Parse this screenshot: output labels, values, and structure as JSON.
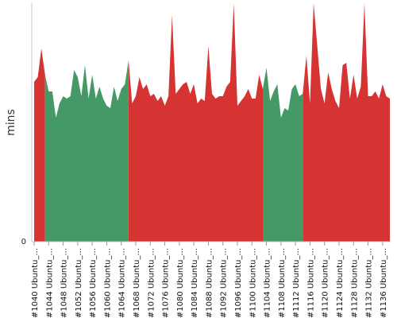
{
  "chart_data": {
    "type": "area",
    "ylabel": "mins",
    "yticks": [
      "0"
    ],
    "ylim": [
      0,
      100
    ],
    "colors": {
      "success": "#449966",
      "failure": "#d63333"
    },
    "x_labels": [
      "#1040 Ubuntu_...",
      "#1044 Ubuntu_...",
      "#1048 Ubuntu_...",
      "#1052 Ubuntu_...",
      "#1056 Ubuntu_...",
      "#1060 Ubuntu_...",
      "#1064 Ubuntu_...",
      "#1068 Ubuntu_...",
      "#1072 Ubuntu_...",
      "#1076 Ubuntu_...",
      "#1080 Ubuntu_...",
      "#1084 Ubuntu_...",
      "#1088 Ubuntu_...",
      "#1092 Ubuntu_...",
      "#1096 Ubuntu_...",
      "#1100 Ubuntu_...",
      "#1104 Ubuntu_...",
      "#1108 Ubuntu_...",
      "#1112 Ubuntu_...",
      "#1116 Ubuntu_...",
      "#1120 Ubuntu_...",
      "#1124 Ubuntu_...",
      "#1128 Ubuntu_...",
      "#1132 Ubuntu_...",
      "#1136 Ubuntu_..."
    ],
    "x_start": 1040,
    "x_end": 1138,
    "segments": [
      {
        "status": "failure",
        "from": 1040,
        "to": 1043
      },
      {
        "status": "success",
        "from": 1043,
        "to": 1066
      },
      {
        "status": "failure",
        "from": 1066,
        "to": 1103
      },
      {
        "status": "success",
        "from": 1103,
        "to": 1114
      },
      {
        "status": "failure",
        "from": 1114,
        "to": 1138
      }
    ],
    "points": [
      [
        1040,
        67
      ],
      [
        1041,
        69
      ],
      [
        1042,
        81
      ],
      [
        1043,
        70
      ],
      [
        1044,
        63
      ],
      [
        1045,
        63
      ],
      [
        1046,
        52
      ],
      [
        1047,
        58
      ],
      [
        1048,
        61
      ],
      [
        1049,
        60
      ],
      [
        1050,
        61
      ],
      [
        1051,
        72
      ],
      [
        1052,
        69
      ],
      [
        1053,
        61
      ],
      [
        1054,
        74
      ],
      [
        1055,
        60
      ],
      [
        1056,
        70
      ],
      [
        1057,
        60
      ],
      [
        1058,
        65
      ],
      [
        1059,
        60
      ],
      [
        1060,
        57
      ],
      [
        1061,
        56
      ],
      [
        1062,
        65
      ],
      [
        1063,
        59
      ],
      [
        1064,
        64
      ],
      [
        1065,
        66
      ],
      [
        1066,
        76
      ],
      [
        1067,
        58
      ],
      [
        1068,
        61
      ],
      [
        1069,
        69
      ],
      [
        1070,
        64
      ],
      [
        1071,
        66
      ],
      [
        1072,
        61
      ],
      [
        1073,
        62
      ],
      [
        1074,
        59
      ],
      [
        1075,
        61
      ],
      [
        1076,
        57
      ],
      [
        1077,
        61
      ],
      [
        1078,
        95
      ],
      [
        1079,
        62
      ],
      [
        1080,
        64
      ],
      [
        1081,
        66
      ],
      [
        1082,
        67
      ],
      [
        1083,
        62
      ],
      [
        1084,
        66
      ],
      [
        1085,
        58
      ],
      [
        1086,
        60
      ],
      [
        1087,
        59
      ],
      [
        1088,
        82
      ],
      [
        1089,
        62
      ],
      [
        1090,
        60
      ],
      [
        1091,
        61
      ],
      [
        1092,
        61
      ],
      [
        1093,
        65
      ],
      [
        1094,
        67
      ],
      [
        1095,
        100
      ],
      [
        1096,
        57
      ],
      [
        1097,
        59
      ],
      [
        1098,
        61
      ],
      [
        1099,
        64
      ],
      [
        1100,
        60
      ],
      [
        1101,
        60
      ],
      [
        1102,
        70
      ],
      [
        1103,
        64
      ],
      [
        1104,
        73
      ],
      [
        1105,
        59
      ],
      [
        1106,
        63
      ],
      [
        1107,
        66
      ],
      [
        1108,
        52
      ],
      [
        1109,
        56
      ],
      [
        1110,
        55
      ],
      [
        1111,
        64
      ],
      [
        1112,
        66
      ],
      [
        1113,
        61
      ],
      [
        1114,
        62
      ],
      [
        1115,
        78
      ],
      [
        1116,
        58
      ],
      [
        1117,
        100
      ],
      [
        1118,
        82
      ],
      [
        1119,
        64
      ],
      [
        1120,
        58
      ],
      [
        1121,
        71
      ],
      [
        1122,
        64
      ],
      [
        1123,
        59
      ],
      [
        1124,
        56
      ],
      [
        1125,
        74
      ],
      [
        1126,
        75
      ],
      [
        1127,
        60
      ],
      [
        1128,
        70
      ],
      [
        1129,
        60
      ],
      [
        1130,
        65
      ],
      [
        1131,
        100
      ],
      [
        1132,
        61
      ],
      [
        1133,
        61
      ],
      [
        1134,
        63
      ],
      [
        1135,
        60
      ],
      [
        1136,
        66
      ],
      [
        1137,
        61
      ],
      [
        1138,
        60
      ]
    ]
  }
}
